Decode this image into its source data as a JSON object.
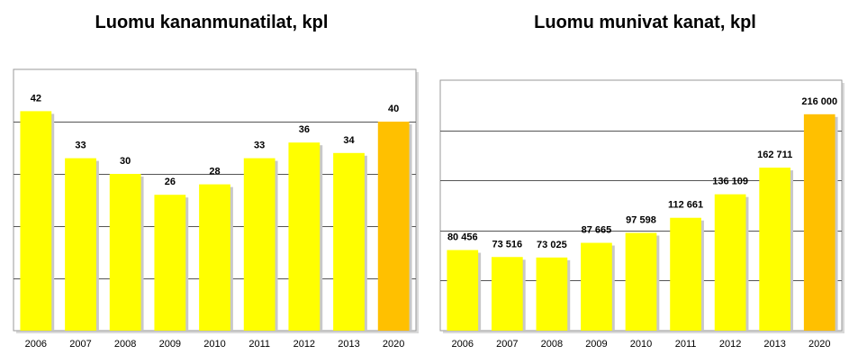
{
  "chart_data": [
    {
      "type": "bar",
      "title": "Luomu kananmunatilat, kpl",
      "categories": [
        "2006",
        "2007",
        "2008",
        "2009",
        "2010",
        "2011",
        "2012",
        "2013",
        "2020"
      ],
      "values": [
        42,
        33,
        30,
        26,
        28,
        33,
        36,
        34,
        40
      ],
      "data_labels": [
        "42",
        "33",
        "30",
        "26",
        "28",
        "33",
        "36",
        "34",
        "40"
      ],
      "xlabel": "",
      "ylabel": "",
      "ylim": [
        0,
        50
      ],
      "grid": true,
      "colors": {
        "bar": "#ffff00",
        "highlight": "#ffc000",
        "plot_bg": "#ffffff",
        "gridline": "#555555"
      },
      "highlight_category": "2020"
    },
    {
      "type": "bar",
      "title": "Luomu munivat kanat, kpl",
      "categories": [
        "2006",
        "2007",
        "2008",
        "2009",
        "2010",
        "2011",
        "2012",
        "2013",
        "2020"
      ],
      "values": [
        80456,
        73516,
        73025,
        87665,
        97598,
        112661,
        136109,
        162711,
        216000
      ],
      "data_labels": [
        "80 456",
        "73 516",
        "73 025",
        "87 665",
        "97 598",
        "112 661",
        "136 109",
        "162 711",
        "216 000"
      ],
      "xlabel": "",
      "ylabel": "",
      "ylim": [
        0,
        250000
      ],
      "grid": true,
      "colors": {
        "bar": "#ffff00",
        "highlight": "#ffc000",
        "plot_bg": "#ffffff",
        "gridline": "#555555"
      },
      "highlight_category": "2020"
    }
  ]
}
